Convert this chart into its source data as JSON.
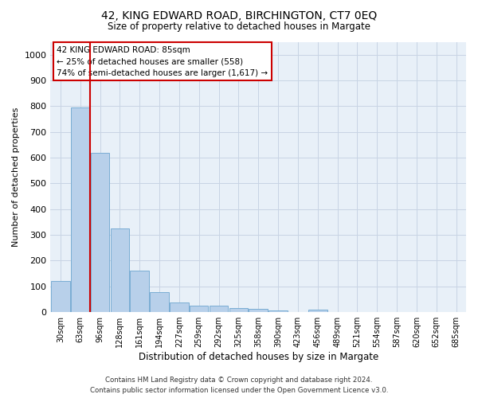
{
  "title": "42, KING EDWARD ROAD, BIRCHINGTON, CT7 0EQ",
  "subtitle": "Size of property relative to detached houses in Margate",
  "xlabel": "Distribution of detached houses by size in Margate",
  "ylabel": "Number of detached properties",
  "bar_labels": [
    "30sqm",
    "63sqm",
    "96sqm",
    "128sqm",
    "161sqm",
    "194sqm",
    "227sqm",
    "259sqm",
    "292sqm",
    "325sqm",
    "358sqm",
    "390sqm",
    "423sqm",
    "456sqm",
    "489sqm",
    "521sqm",
    "554sqm",
    "587sqm",
    "620sqm",
    "652sqm",
    "685sqm"
  ],
  "bar_values": [
    122,
    795,
    618,
    325,
    160,
    77,
    37,
    26,
    24,
    15,
    12,
    5,
    0,
    9,
    0,
    0,
    0,
    0,
    0,
    0,
    0
  ],
  "bar_color": "#b8d0ea",
  "bar_edge_color": "#7aadd4",
  "annotation_title": "42 KING EDWARD ROAD: 85sqm",
  "annotation_line1": "← 25% of detached houses are smaller (558)",
  "annotation_line2": "74% of semi-detached houses are larger (1,617) →",
  "ylim": [
    0,
    1050
  ],
  "yticks": [
    0,
    100,
    200,
    300,
    400,
    500,
    600,
    700,
    800,
    900,
    1000
  ],
  "red_line_x": 1.5,
  "footer_line1": "Contains HM Land Registry data © Crown copyright and database right 2024.",
  "footer_line2": "Contains public sector information licensed under the Open Government Licence v3.0.",
  "plot_bg_color": "#e8f0f8"
}
